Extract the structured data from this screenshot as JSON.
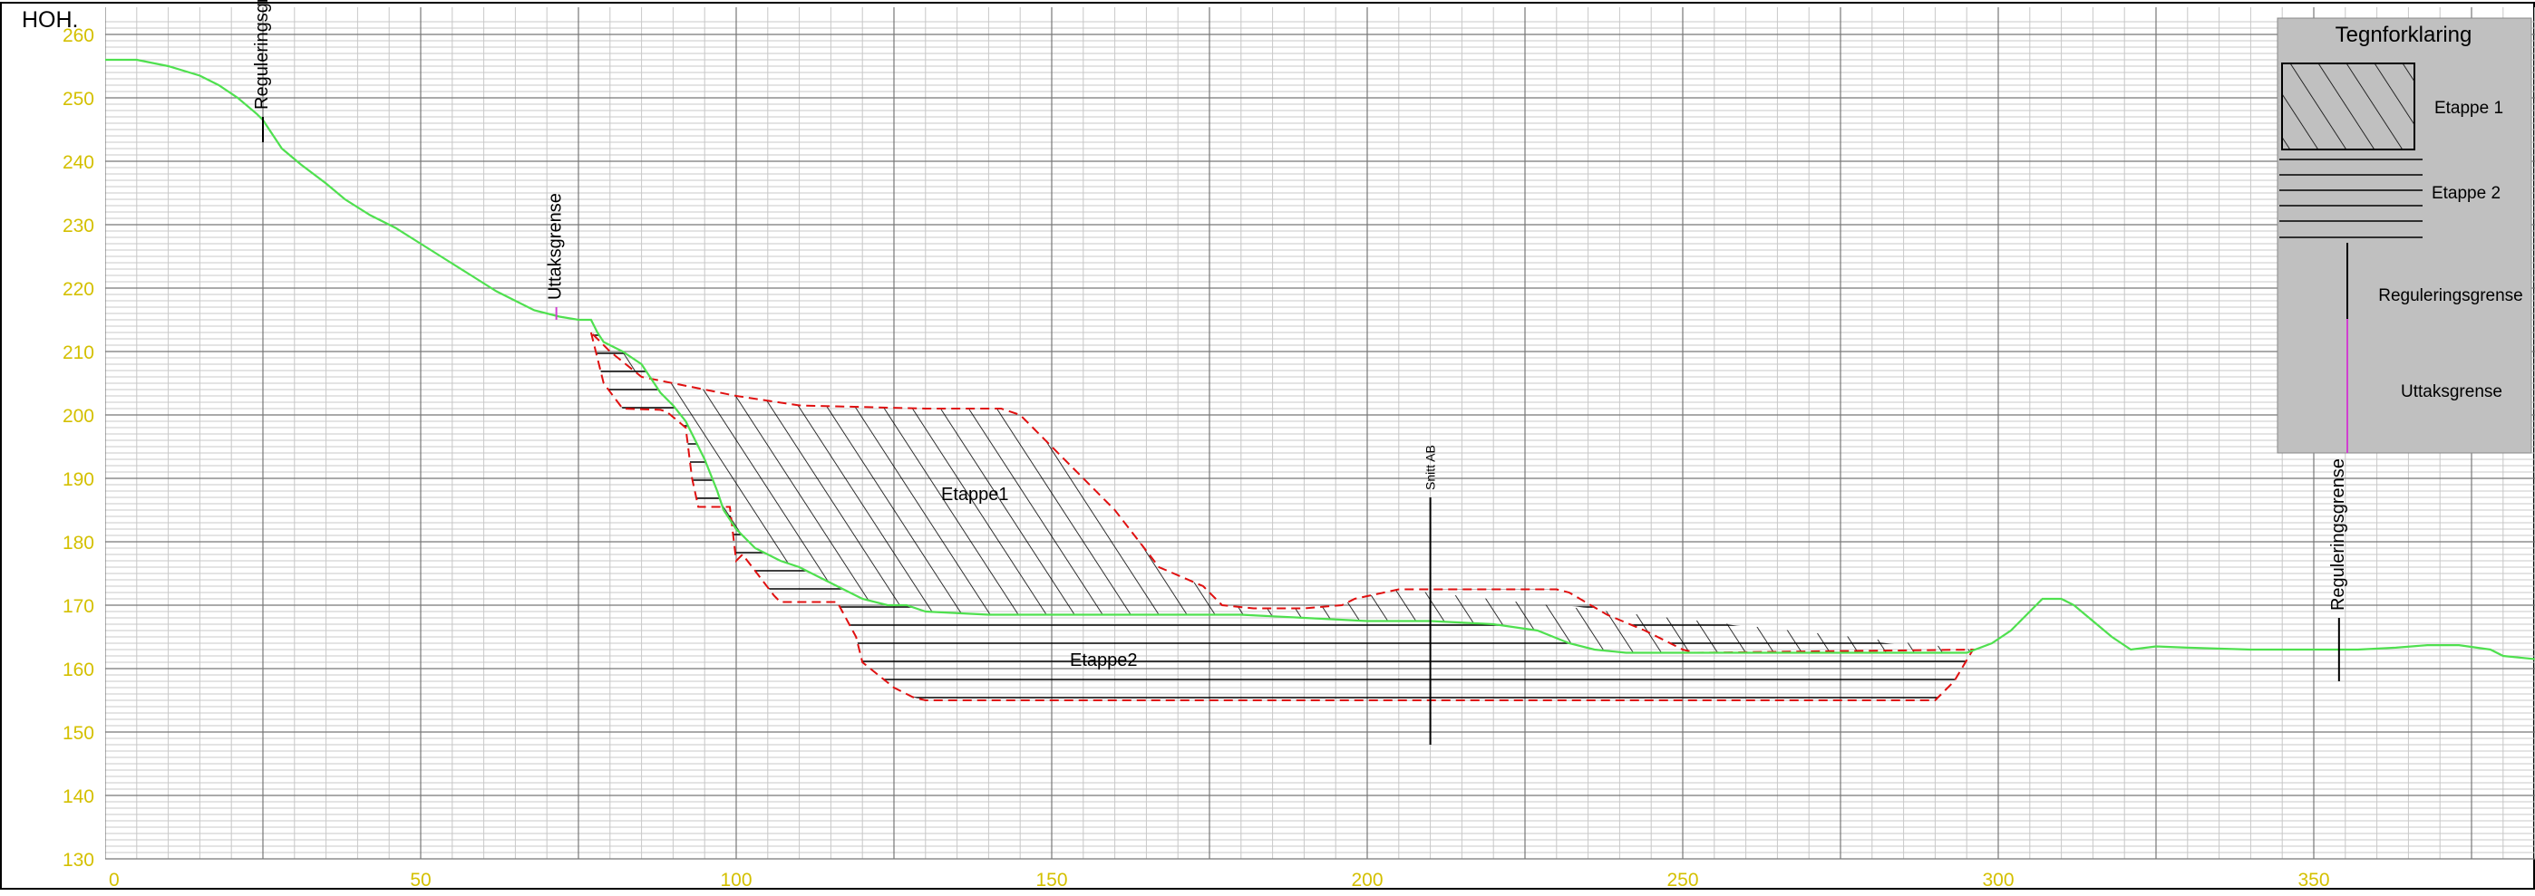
{
  "chart_data": {
    "type": "line",
    "title": "",
    "ylabel": "HOH.",
    "xlabel": "",
    "xlim": [
      0,
      385
    ],
    "ylim": [
      130,
      262
    ],
    "x_ticks": [
      "0",
      "50",
      "100",
      "150",
      "200",
      "250",
      "300",
      "350"
    ],
    "y_ticks": [
      "130",
      "140",
      "150",
      "160",
      "170",
      "180",
      "190",
      "200",
      "210",
      "220",
      "230",
      "240",
      "250",
      "260"
    ],
    "grid": true,
    "legend_position": "top-right",
    "colors": {
      "terrain": "#4fe04f",
      "boundary": "#e01010",
      "hatch": "#000000",
      "grid_major": "#777777",
      "grid_minor": "#c8c8c8",
      "tick_labels": "#d4c000",
      "legend_bg": "#c0c0c0",
      "uttak_line": "#d040d0"
    },
    "series": [
      {
        "name": "",
        "kind": "terrain",
        "points": [
          [
            0,
            256
          ],
          [
            5,
            256
          ],
          [
            10,
            255
          ],
          [
            15,
            253.5
          ],
          [
            18,
            252
          ],
          [
            21,
            250
          ],
          [
            24,
            247.5
          ],
          [
            25,
            246.5
          ],
          [
            28,
            242
          ],
          [
            31,
            239.5
          ],
          [
            35,
            236.5
          ],
          [
            38,
            234
          ],
          [
            42,
            231.5
          ],
          [
            46,
            229.5
          ],
          [
            50,
            227
          ],
          [
            54,
            224.5
          ],
          [
            58,
            222
          ],
          [
            62,
            219.5
          ],
          [
            65,
            218
          ],
          [
            68,
            216.5
          ],
          [
            72,
            215.5
          ],
          [
            75,
            215
          ],
          [
            77,
            215
          ],
          [
            78,
            213
          ],
          [
            79,
            211.5
          ],
          [
            82,
            210
          ],
          [
            85,
            208
          ],
          [
            87,
            205
          ],
          [
            88,
            203.5
          ],
          [
            90,
            201.5
          ],
          [
            92,
            199
          ],
          [
            93,
            197
          ],
          [
            95,
            193
          ],
          [
            97,
            188
          ],
          [
            98,
            185
          ],
          [
            100,
            182
          ],
          [
            103,
            179
          ],
          [
            107,
            177
          ],
          [
            110,
            176
          ],
          [
            114,
            174
          ],
          [
            117,
            172.5
          ],
          [
            120,
            171
          ],
          [
            124,
            170
          ],
          [
            127,
            170
          ],
          [
            130,
            169
          ],
          [
            140,
            168.5
          ],
          [
            150,
            168.5
          ],
          [
            160,
            168.5
          ],
          [
            170,
            168.5
          ],
          [
            180,
            168.5
          ],
          [
            190,
            168
          ],
          [
            200,
            167.5
          ],
          [
            210,
            167.5
          ],
          [
            220,
            167
          ],
          [
            227,
            166
          ],
          [
            232,
            164
          ],
          [
            236,
            163
          ],
          [
            241,
            162.5
          ],
          [
            250,
            162.5
          ],
          [
            260,
            162.5
          ],
          [
            270,
            162.5
          ],
          [
            280,
            162.5
          ],
          [
            290,
            162.5
          ],
          [
            295,
            162.5
          ],
          [
            299,
            164
          ],
          [
            302,
            166
          ],
          [
            305,
            169
          ],
          [
            307,
            171
          ],
          [
            310,
            171
          ],
          [
            312,
            170
          ],
          [
            315,
            167.5
          ],
          [
            318,
            165
          ],
          [
            321,
            163
          ],
          [
            325,
            163.5
          ],
          [
            330,
            163.3
          ],
          [
            340,
            163
          ],
          [
            350,
            163
          ],
          [
            357,
            163
          ],
          [
            363,
            163.3
          ],
          [
            368,
            163.7
          ],
          [
            373,
            163.7
          ],
          [
            378,
            163
          ],
          [
            380,
            162
          ],
          [
            385,
            161.5
          ]
        ]
      },
      {
        "name": "",
        "kind": "boundary",
        "closed": true,
        "points": [
          [
            77,
            213
          ],
          [
            79,
            205
          ],
          [
            82,
            201
          ],
          [
            88,
            200.8
          ],
          [
            89,
            200.5
          ],
          [
            92,
            198
          ],
          [
            93,
            190
          ],
          [
            94,
            185.5
          ],
          [
            99,
            185.5
          ],
          [
            100,
            177
          ],
          [
            101,
            178
          ],
          [
            106,
            171.5
          ],
          [
            107,
            170.5
          ],
          [
            116,
            170.5
          ],
          [
            119,
            165
          ],
          [
            120,
            161
          ],
          [
            125,
            157
          ],
          [
            128,
            155.5
          ],
          [
            130,
            155
          ],
          [
            290,
            155
          ],
          [
            293,
            158
          ],
          [
            296,
            163
          ],
          [
            252,
            162.5
          ],
          [
            250,
            163
          ],
          [
            246,
            165
          ],
          [
            244,
            166
          ],
          [
            238,
            168.5
          ],
          [
            232,
            172
          ],
          [
            230,
            172.5
          ],
          [
            215,
            172.5
          ],
          [
            210,
            172.5
          ],
          [
            205,
            172.5
          ],
          [
            198,
            171
          ],
          [
            196,
            170
          ],
          [
            190,
            169.5
          ],
          [
            182,
            169.5
          ],
          [
            177,
            170
          ],
          [
            174,
            173
          ],
          [
            167,
            176
          ],
          [
            160,
            185
          ],
          [
            150,
            195
          ],
          [
            145,
            200
          ],
          [
            142,
            201
          ],
          [
            130,
            201
          ],
          [
            110,
            201.5
          ],
          [
            100,
            203
          ],
          [
            90,
            205
          ],
          [
            85,
            206
          ],
          [
            80,
            210
          ]
        ]
      }
    ],
    "etappe_labels": [
      "Etappe1",
      "Etappe2"
    ],
    "annotations": [
      {
        "text": "Reguleringsgrense",
        "x": 25,
        "y_top": 247,
        "y_bottom": 243
      },
      {
        "text": "Uttaksgrense",
        "x": 71.5,
        "y_top": 217,
        "y_bottom": 215
      },
      {
        "text": "Snitt AB",
        "x": 210,
        "y_top": 187,
        "y_bottom": 148
      },
      {
        "text": "Reguleringsgrense",
        "x": 354,
        "y_top": 168,
        "y_bottom": 158
      }
    ],
    "legend": {
      "title": "Tegnforklaring",
      "items": [
        "Etappe 1",
        "Etappe 2",
        "Reguleringsgrense",
        "Uttaksgrense"
      ]
    }
  }
}
